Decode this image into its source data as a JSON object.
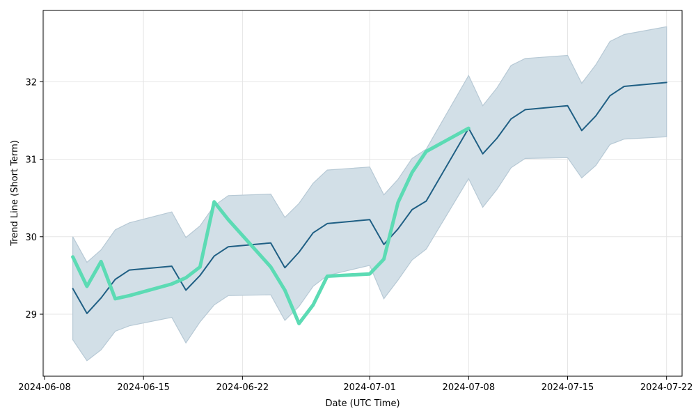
{
  "chart_data": {
    "type": "line",
    "title": "",
    "xlabel": "Date (UTC Time)",
    "ylabel": "Trend Line (Short Term)",
    "x_range": [
      "2024-06-08",
      "2024-07-23"
    ],
    "ylim": [
      28.2,
      32.92
    ],
    "grid": true,
    "x_ticks": [
      "2024-06-08",
      "2024-06-15",
      "2024-06-22",
      "2024-07-01",
      "2024-07-08",
      "2024-07-15",
      "2024-07-22"
    ],
    "y_ticks": [
      29,
      30,
      31,
      32
    ],
    "series": [
      {
        "type": "band",
        "color": "#d2dfe7",
        "edge_color": "#b7c9d5",
        "x": [
          "2024-06-10",
          "2024-06-11",
          "2024-06-12",
          "2024-06-13",
          "2024-06-14",
          "2024-06-17",
          "2024-06-18",
          "2024-06-19",
          "2024-06-20",
          "2024-06-21",
          "2024-06-24",
          "2024-06-25",
          "2024-06-26",
          "2024-06-27",
          "2024-06-28",
          "2024-07-01",
          "2024-07-02",
          "2024-07-03",
          "2024-07-04",
          "2024-07-05",
          "2024-07-08",
          "2024-07-09",
          "2024-07-10",
          "2024-07-11",
          "2024-07-12",
          "2024-07-15",
          "2024-07-16",
          "2024-07-17",
          "2024-07-18",
          "2024-07-19",
          "2024-07-22"
        ],
        "lower": [
          28.67,
          28.4,
          28.54,
          28.78,
          28.85,
          28.96,
          28.63,
          28.9,
          29.12,
          29.24,
          29.25,
          28.92,
          29.1,
          29.36,
          29.5,
          29.63,
          29.2,
          29.44,
          29.7,
          29.84,
          30.75,
          30.38,
          30.61,
          30.89,
          31.01,
          31.02,
          30.76,
          30.92,
          31.19,
          31.26,
          31.29
        ],
        "upper": [
          30.0,
          29.67,
          29.83,
          30.09,
          30.18,
          30.32,
          29.99,
          30.14,
          30.4,
          30.53,
          30.55,
          30.25,
          30.43,
          30.69,
          30.86,
          30.9,
          30.54,
          30.74,
          31.01,
          31.13,
          32.08,
          31.69,
          31.92,
          32.21,
          32.3,
          32.34,
          31.98,
          32.22,
          32.52,
          32.61,
          32.71
        ]
      },
      {
        "type": "line",
        "color": "#1f5f84",
        "x": [
          "2024-06-10",
          "2024-06-11",
          "2024-06-12",
          "2024-06-13",
          "2024-06-14",
          "2024-06-17",
          "2024-06-18",
          "2024-06-19",
          "2024-06-20",
          "2024-06-21",
          "2024-06-24",
          "2024-06-25",
          "2024-06-26",
          "2024-06-27",
          "2024-06-28",
          "2024-07-01",
          "2024-07-02",
          "2024-07-03",
          "2024-07-04",
          "2024-07-05",
          "2024-07-08",
          "2024-07-09",
          "2024-07-10",
          "2024-07-11",
          "2024-07-12",
          "2024-07-15",
          "2024-07-16",
          "2024-07-17",
          "2024-07-18",
          "2024-07-19",
          "2024-07-22"
        ],
        "values": [
          29.33,
          29.01,
          29.21,
          29.45,
          29.57,
          29.62,
          29.31,
          29.5,
          29.75,
          29.87,
          29.92,
          29.6,
          29.8,
          30.05,
          30.17,
          30.22,
          29.9,
          30.1,
          30.35,
          30.46,
          31.4,
          31.07,
          31.27,
          31.52,
          31.64,
          31.69,
          31.37,
          31.56,
          31.82,
          31.94,
          31.99
        ]
      },
      {
        "type": "line",
        "color": "#5cdbb4",
        "x": [
          "2024-06-10",
          "2024-06-11",
          "2024-06-12",
          "2024-06-13",
          "2024-06-14",
          "2024-06-17",
          "2024-06-18",
          "2024-06-19",
          "2024-06-20",
          "2024-06-21",
          "2024-06-24",
          "2024-06-25",
          "2024-06-26",
          "2024-06-27",
          "2024-06-28",
          "2024-07-01",
          "2024-07-02",
          "2024-07-03",
          "2024-07-04",
          "2024-07-05",
          "2024-07-08"
        ],
        "values": [
          29.74,
          29.36,
          29.68,
          29.2,
          29.24,
          29.39,
          29.47,
          29.61,
          30.45,
          30.22,
          29.61,
          29.31,
          28.88,
          29.12,
          29.49,
          29.52,
          29.71,
          30.44,
          30.83,
          31.1,
          31.4
        ]
      }
    ]
  }
}
